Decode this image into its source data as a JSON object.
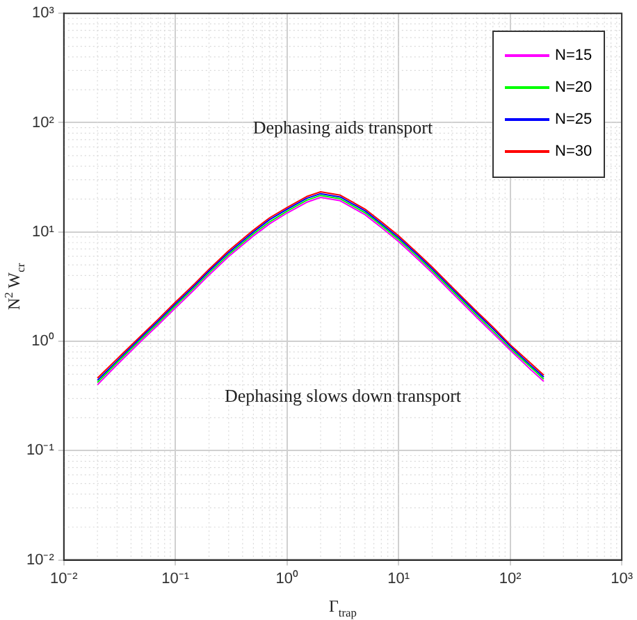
{
  "chart_data": {
    "type": "line",
    "xlabel": "Γ$_{trap}$",
    "ylabel": "N$^{2}$ W$_{cr}$",
    "x": [
      0.02,
      0.03,
      0.05,
      0.07,
      0.1,
      0.15,
      0.2,
      0.3,
      0.5,
      0.7,
      1,
      1.5,
      2,
      3,
      5,
      7,
      10,
      15,
      20,
      30,
      50,
      70,
      100,
      150,
      200
    ],
    "series": [
      {
        "name": "N=15",
        "color": "#ff00ff",
        "values": [
          0.4,
          0.61,
          1.02,
          1.41,
          2.02,
          3.01,
          4.04,
          5.97,
          9.21,
          11.9,
          14.9,
          18.7,
          20.7,
          19.3,
          14.4,
          11.0,
          8.18,
          5.59,
          4.23,
          2.79,
          1.66,
          1.19,
          0.83,
          0.56,
          0.43
        ]
      },
      {
        "name": "N=20",
        "color": "#00ff00",
        "values": [
          0.42,
          0.64,
          1.06,
          1.47,
          2.11,
          3.14,
          4.21,
          6.22,
          9.6,
          12.4,
          15.5,
          19.5,
          21.6,
          20.1,
          15.0,
          11.5,
          8.53,
          5.83,
          4.41,
          2.91,
          1.73,
          1.24,
          0.86,
          0.59,
          0.45
        ]
      },
      {
        "name": "N=25",
        "color": "#0000ff",
        "values": [
          0.44,
          0.66,
          1.1,
          1.53,
          2.19,
          3.26,
          4.39,
          6.48,
          10.0,
          13.0,
          16.1,
          20.3,
          22.4,
          20.9,
          15.6,
          11.9,
          8.87,
          6.07,
          4.59,
          3.03,
          1.81,
          1.3,
          0.9,
          0.61,
          0.47
        ]
      },
      {
        "name": "N=30",
        "color": "#ff0000",
        "values": [
          0.46,
          0.69,
          1.14,
          1.59,
          2.28,
          3.39,
          4.56,
          6.73,
          10.4,
          13.5,
          16.7,
          21.1,
          23.3,
          21.7,
          16.2,
          12.4,
          9.22,
          6.31,
          4.77,
          3.15,
          1.88,
          1.35,
          0.93,
          0.64,
          0.49
        ]
      }
    ],
    "log": "xy",
    "grid": true,
    "legend": "top right",
    "xlim": [
      0.01,
      1000
    ],
    "ylim": [
      0.01,
      1000
    ],
    "xticks": [
      {
        "value": 0.01,
        "label": "10⁻²"
      },
      {
        "value": 0.1,
        "label": "10⁻¹"
      },
      {
        "value": 1,
        "label": "10⁰"
      },
      {
        "value": 10,
        "label": "10¹"
      },
      {
        "value": 100,
        "label": "10²"
      },
      {
        "value": 1000,
        "label": "10³"
      }
    ],
    "yticks": [
      {
        "value": 0.01,
        "label": "10⁻²"
      },
      {
        "value": 0.1,
        "label": "10⁻¹"
      },
      {
        "value": 1,
        "label": "10⁰"
      },
      {
        "value": 10,
        "label": "10¹"
      },
      {
        "value": 100,
        "label": "10²"
      },
      {
        "value": 1000,
        "label": "10³"
      }
    ],
    "annotations": [
      "Dephasing aids transport",
      "Dephasing slows down transport"
    ]
  }
}
